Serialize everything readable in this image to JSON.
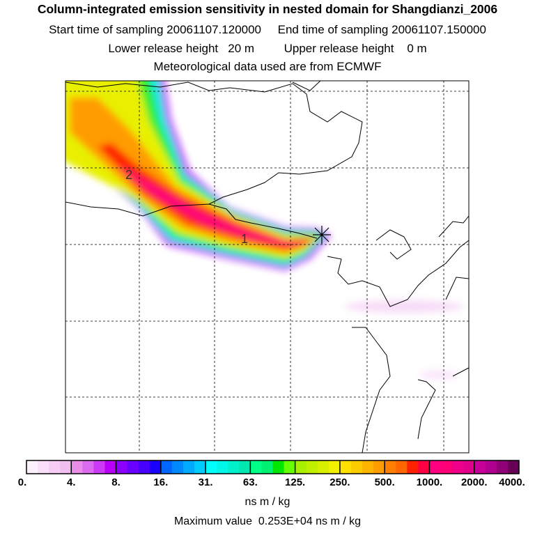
{
  "header": {
    "title": "Column-integrated emission sensitivity in nested domain for Shangdianzi_2006",
    "start_label": "Start time of sampling 20061107.120000",
    "end_label": "End time of sampling 20061107.150000",
    "lower_label": "Lower release height   20 m",
    "upper_label": "Upper release height    0 m",
    "met_label": "Meteorological data used are from ECMWF"
  },
  "map": {
    "markers": [
      "2",
      "1"
    ],
    "receptor_icon": "star-cross-icon"
  },
  "colorbar": {
    "ticks": [
      "0.",
      "4.",
      "8.",
      "16.",
      "31.",
      "63.",
      "125.",
      "250.",
      "500.",
      "1000.",
      "2000.",
      "4000."
    ],
    "colors": [
      "#fdf0fd",
      "#f9dff9",
      "#f5cdf5",
      "#f0bff0",
      "#e98de9",
      "#da6bf0",
      "#cc3af5",
      "#b800f8",
      "#8c00ff",
      "#6a00ff",
      "#4800ff",
      "#1a00ff",
      "#0066ff",
      "#0088ff",
      "#00aaff",
      "#00ccff",
      "#00ffff",
      "#00f6e6",
      "#00f0cc",
      "#00e6b0",
      "#00ff88",
      "#00f070",
      "#00e600",
      "#66ff00",
      "#a8f000",
      "#c0f000",
      "#d8f000",
      "#f0f000",
      "#ffe000",
      "#ffcc00",
      "#ffb400",
      "#ff9c00",
      "#ff8000",
      "#ff6600",
      "#ff2200",
      "#ff0044",
      "#ff0080",
      "#ff0077",
      "#f0008a",
      "#e0008a",
      "#c8009a",
      "#b00090",
      "#900078",
      "#680058"
    ],
    "unit": "ns m / kg",
    "max_label": "Maximum value  0.253E+04 ns m / kg"
  }
}
